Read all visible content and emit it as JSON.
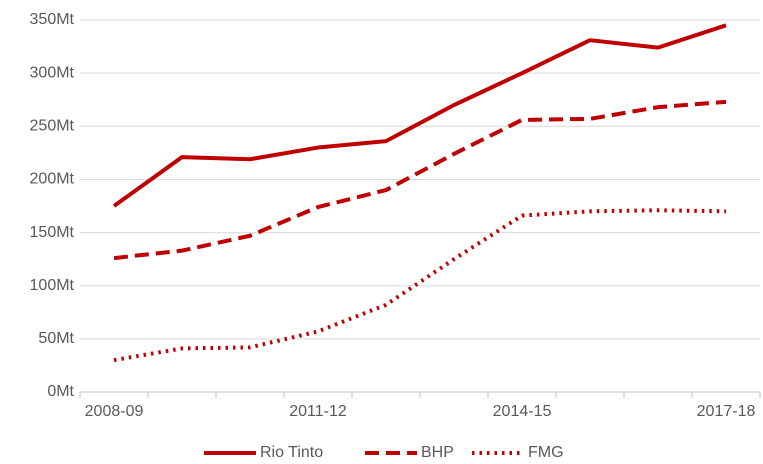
{
  "chart_data": {
    "type": "line",
    "categories": [
      "2008-09",
      null,
      null,
      "2011-12",
      null,
      null,
      "2014-15",
      null,
      null,
      "2017-18"
    ],
    "series": [
      {
        "name": "Rio Tinto",
        "color": "#c00000",
        "style": "solid",
        "values": [
          175,
          221,
          219,
          230,
          236,
          270,
          300,
          331,
          324,
          345
        ]
      },
      {
        "name": "BHP",
        "color": "#c00000",
        "style": "dashed",
        "values": [
          126,
          133,
          147,
          174,
          190,
          224,
          256,
          257,
          268,
          273
        ]
      },
      {
        "name": "FMG",
        "color": "#c00000",
        "style": "dotted",
        "values": [
          30,
          41,
          42,
          57,
          82,
          125,
          166,
          170,
          171,
          170
        ]
      }
    ],
    "ylim": [
      0,
      350
    ],
    "yticks": [
      {
        "value": 0,
        "label": "0Mt"
      },
      {
        "value": 50,
        "label": "50Mt"
      },
      {
        "value": 100,
        "label": "100Mt"
      },
      {
        "value": 150,
        "label": "150Mt"
      },
      {
        "value": 200,
        "label": "200Mt"
      },
      {
        "value": 250,
        "label": "250Mt"
      },
      {
        "value": 300,
        "label": "300Mt"
      },
      {
        "value": 350,
        "label": "350Mt"
      }
    ],
    "grid": true,
    "legend": "bottom"
  }
}
